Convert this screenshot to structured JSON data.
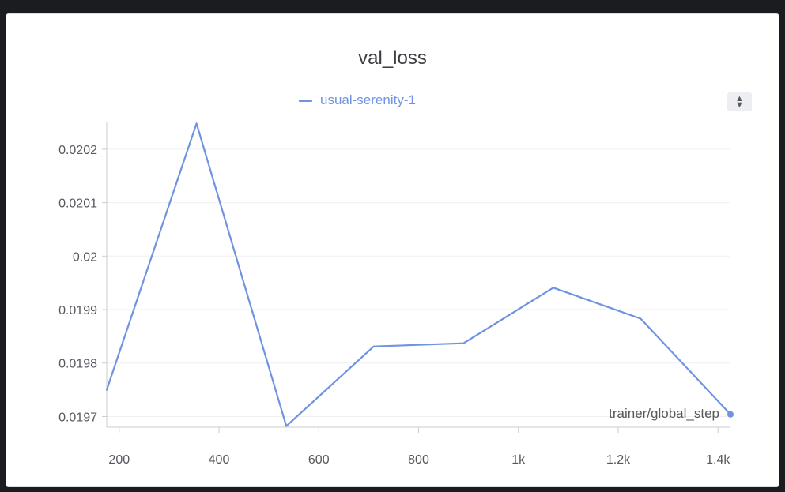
{
  "chart_data": {
    "type": "line",
    "title": "val_loss",
    "xlabel": "trainer/global_step",
    "ylabel": "",
    "xlim": [
      175,
      1425
    ],
    "ylim": [
      0.01968,
      0.02025
    ],
    "x_ticks": [
      200,
      400,
      600,
      800,
      1000,
      1200,
      1400
    ],
    "x_tick_labels": [
      "200",
      "400",
      "600",
      "800",
      "1k",
      "1.2k",
      "1.4k"
    ],
    "y_ticks": [
      0.0197,
      0.0198,
      0.0199,
      0.02,
      0.0201,
      0.0202
    ],
    "y_tick_labels": [
      "0.0197",
      "0.0198",
      "0.0199",
      "0.02",
      "0.0201",
      "0.0202"
    ],
    "grid": true,
    "legend_position": "top-center",
    "series": [
      {
        "name": "usual-serenity-1",
        "color": "#6f93e0",
        "x": [
          175,
          355,
          535,
          710,
          890,
          1070,
          1245,
          1425
        ],
        "y": [
          0.01975,
          0.020248,
          0.019682,
          0.019831,
          0.019837,
          0.019941,
          0.019883,
          0.019704
        ]
      }
    ]
  },
  "controls": {
    "sort_icon": "sort-arrows-icon"
  }
}
